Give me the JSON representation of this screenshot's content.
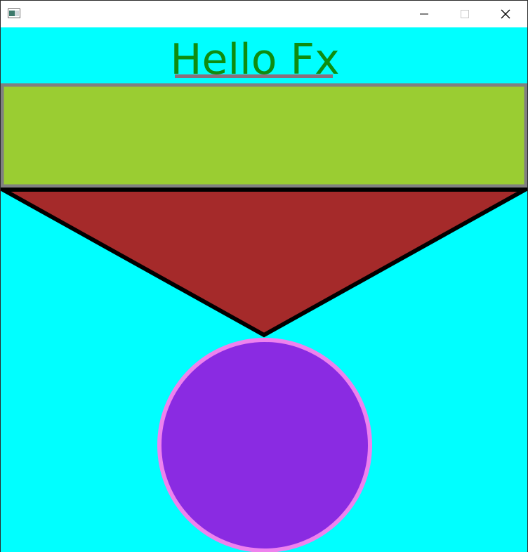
{
  "window": {
    "title": "",
    "controls": {
      "minimize": "minimize",
      "maximize": "maximize",
      "close": "close"
    }
  },
  "scene": {
    "heading": "Hello Fx",
    "colors": {
      "background": "#00ffff",
      "heading_text": "#0f8c0f",
      "heading_underline": "#8a6f7c",
      "rectangle_fill": "#9acd32",
      "rectangle_stroke": "#808080",
      "triangle_fill": "#a52a2a",
      "triangle_stroke": "#000000",
      "circle_fill": "#8a2be2",
      "circle_stroke": "#ee82ee"
    },
    "shapes": [
      "rectangle",
      "triangle",
      "circle"
    ]
  }
}
